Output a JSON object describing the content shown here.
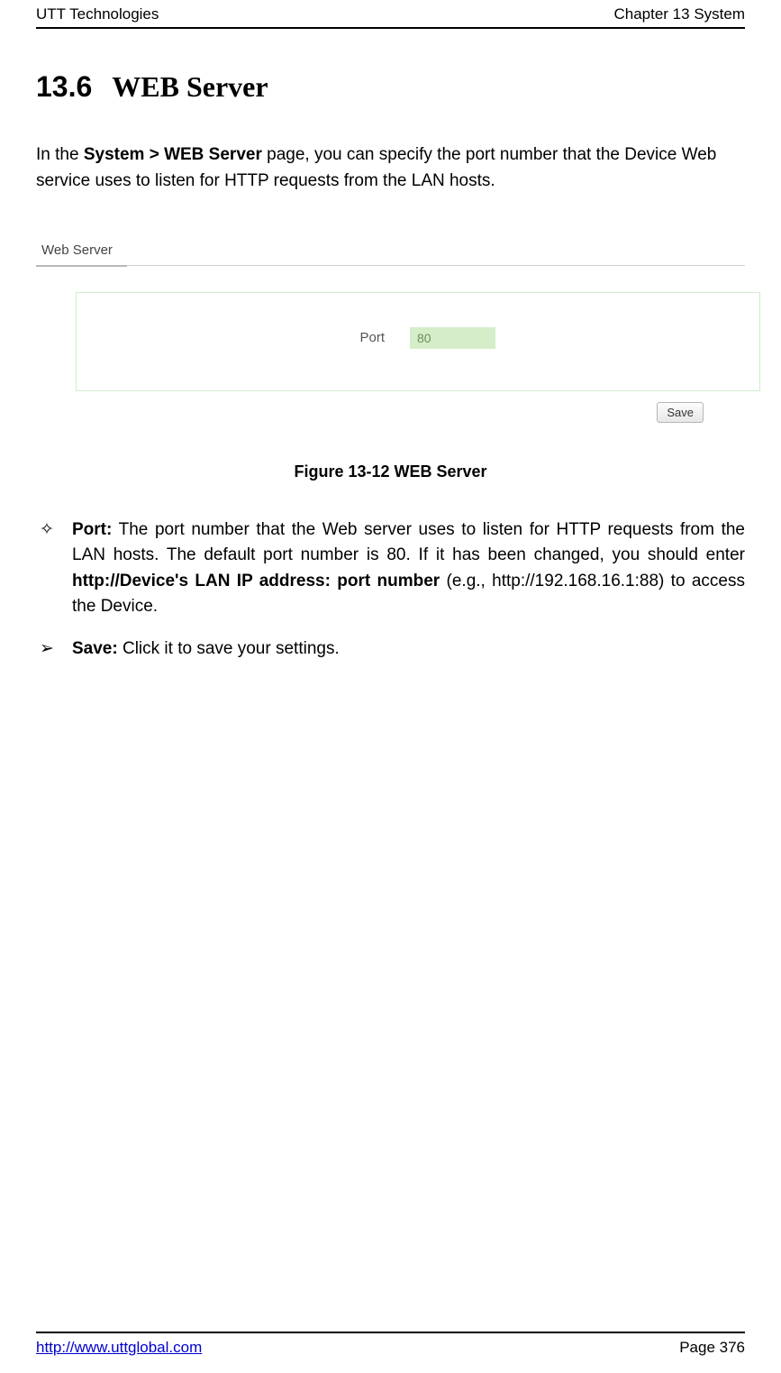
{
  "header": {
    "left": "UTT Technologies",
    "right": "Chapter 13 System"
  },
  "section": {
    "number": "13.6",
    "title": "WEB Server"
  },
  "intro": {
    "prefix": "In the ",
    "bold": "System > WEB Server",
    "suffix": " page, you can specify the port number that the Device Web service uses to listen for HTTP requests from the LAN hosts."
  },
  "screenshot": {
    "tab_label": "Web Server",
    "field_label": "Port",
    "field_value": "80",
    "save_label": "Save",
    "panel_border_color": "#cfeccc",
    "input_bg": "#d6edc9",
    "input_text_color": "#6b8f5b"
  },
  "caption": "Figure 13-12 WEB Server",
  "bullets": [
    {
      "symbol": "✧",
      "label": "Port:",
      "text_before_bold": " The port number that the Web server uses to listen for HTTP requests from the LAN hosts. The default port number is 80. If it has been changed, you should enter ",
      "bold_mid": "http://Device's LAN IP address: port number",
      "text_after_bold": " (e.g., http://192.168.16.1:88) to access the Device."
    },
    {
      "symbol": "➢",
      "label": "Save:",
      "text_before_bold": " Click it to save your settings.",
      "bold_mid": "",
      "text_after_bold": ""
    }
  ],
  "footer": {
    "url": "http://www.uttglobal.com",
    "page": "Page 376"
  }
}
